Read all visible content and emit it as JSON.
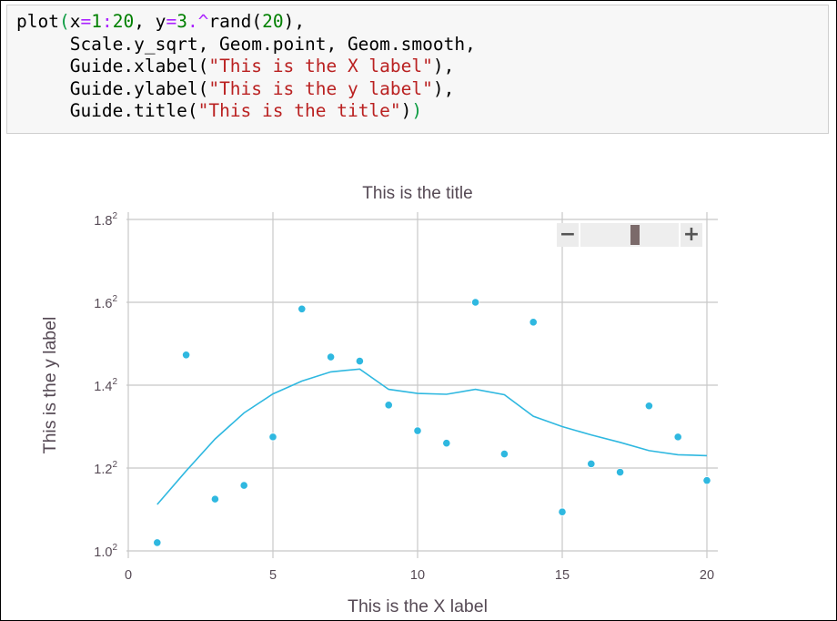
{
  "code_cell": {
    "lines": [
      [
        [
          "plot",
          "t"
        ],
        [
          "(",
          "pm"
        ],
        [
          "x",
          "t"
        ],
        [
          "=",
          "o"
        ],
        [
          "1",
          "n"
        ],
        [
          ":",
          "o"
        ],
        [
          "20",
          "n"
        ],
        [
          ", y",
          "t"
        ],
        [
          "=",
          "o"
        ],
        [
          "3",
          "n"
        ],
        [
          ".^",
          "o"
        ],
        [
          "rand(",
          "t"
        ],
        [
          "20",
          "n"
        ],
        [
          "),",
          "t"
        ]
      ],
      [
        [
          "     Scale.y_sqrt, Geom.point, Geom.smooth,",
          "t"
        ]
      ],
      [
        [
          "     Guide.xlabel(",
          "t"
        ],
        [
          "\"This is the X label\"",
          "s"
        ],
        [
          "),",
          "t"
        ]
      ],
      [
        [
          "     Guide.ylabel(",
          "t"
        ],
        [
          "\"This is the y label\"",
          "s"
        ],
        [
          "),",
          "t"
        ]
      ],
      [
        [
          "     Guide.title(",
          "t"
        ],
        [
          "\"This is the title\"",
          "s"
        ],
        [
          ")",
          "t"
        ],
        [
          ")",
          "pm"
        ]
      ]
    ]
  },
  "zoom_control": {
    "minus_label": "−",
    "plus_label": "+",
    "slider_position": 0.55
  },
  "colors": {
    "point": "#2fb8e0",
    "smooth_line": "#2fb8e0",
    "grid": "#c8c8c8",
    "text": "#564a55"
  },
  "chart_data": {
    "type": "scatter",
    "title": "This is the title",
    "xlabel": "This is the X label",
    "ylabel": "This is the y label",
    "y_scale": "sqrt",
    "x_ticks": [
      "0",
      "5",
      "10",
      "15",
      "20"
    ],
    "x_tick_values": [
      0,
      5,
      10,
      15,
      20
    ],
    "y_ticks": [
      {
        "base": "1.0",
        "exp": "2",
        "value": 1.0
      },
      {
        "base": "1.2",
        "exp": "2",
        "value": 1.2
      },
      {
        "base": "1.4",
        "exp": "2",
        "value": 1.4
      },
      {
        "base": "1.6",
        "exp": "2",
        "value": 1.6
      },
      {
        "base": "1.8",
        "exp": "2",
        "value": 1.8
      }
    ],
    "xlim": [
      0,
      20
    ],
    "ylim_sqrt": [
      1.0,
      1.8
    ],
    "grid": true,
    "points": {
      "x": [
        1,
        2,
        3,
        4,
        5,
        6,
        7,
        8,
        9,
        10,
        11,
        12,
        13,
        14,
        15,
        16,
        17,
        18,
        19,
        20
      ],
      "sqrt_y": [
        1.02,
        1.473,
        1.125,
        1.158,
        1.275,
        1.584,
        1.468,
        1.458,
        1.352,
        1.29,
        1.26,
        1.6,
        1.234,
        1.552,
        1.094,
        1.21,
        1.19,
        1.35,
        1.275,
        1.17
      ]
    },
    "smooth": {
      "x": [
        1,
        2,
        3,
        4,
        5,
        6,
        7,
        8,
        9,
        10,
        11,
        12,
        13,
        14,
        15,
        16,
        17,
        18,
        19,
        20
      ],
      "sqrt_y": [
        1.112,
        1.193,
        1.27,
        1.333,
        1.379,
        1.41,
        1.432,
        1.439,
        1.39,
        1.38,
        1.378,
        1.39,
        1.377,
        1.325,
        1.3,
        1.28,
        1.262,
        1.242,
        1.232,
        1.23
      ]
    }
  }
}
